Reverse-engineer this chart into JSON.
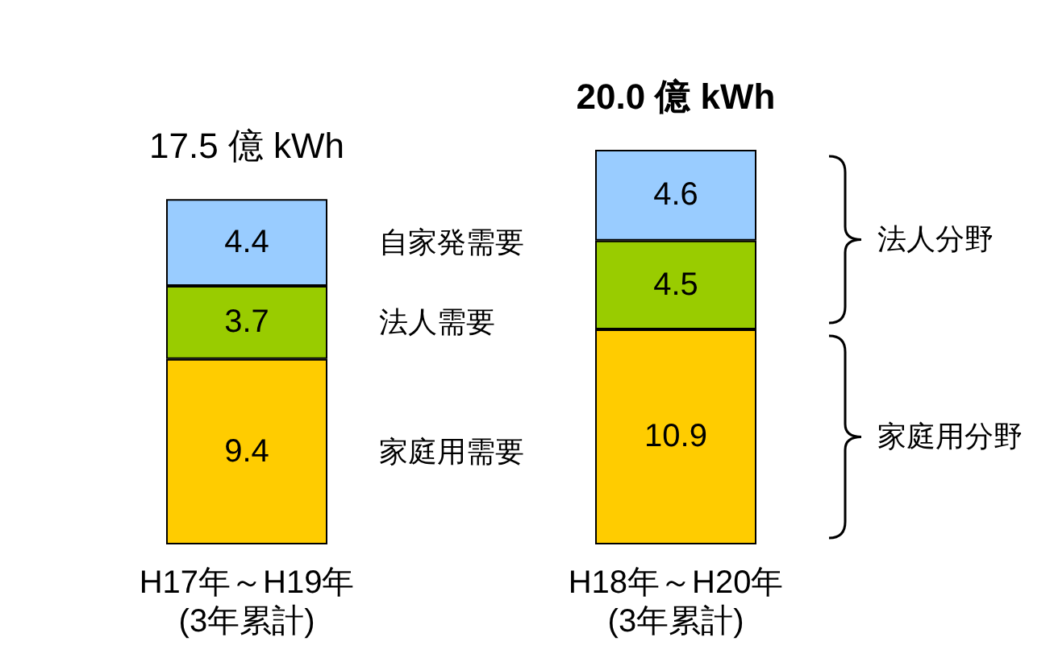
{
  "chart_data": {
    "type": "bar",
    "stacked": true,
    "data_labels": true,
    "legend": false,
    "categories": [
      "H17年～H19年\n(3年累計)",
      "H18年～H20年\n(3年累計)"
    ],
    "series": [
      {
        "name": "家庭用需要",
        "color": "#ffcc00",
        "values": [
          9.4,
          10.9
        ]
      },
      {
        "name": "法人需要",
        "color": "#99cc00",
        "values": [
          3.7,
          4.5
        ]
      },
      {
        "name": "自家発需要",
        "color": "#99ccff",
        "values": [
          4.4,
          4.6
        ]
      }
    ],
    "totals": [
      "17.5 億 kWh",
      "20.0 億 kWh"
    ],
    "annotations": [
      "法人分野",
      "家庭用分野"
    ]
  }
}
